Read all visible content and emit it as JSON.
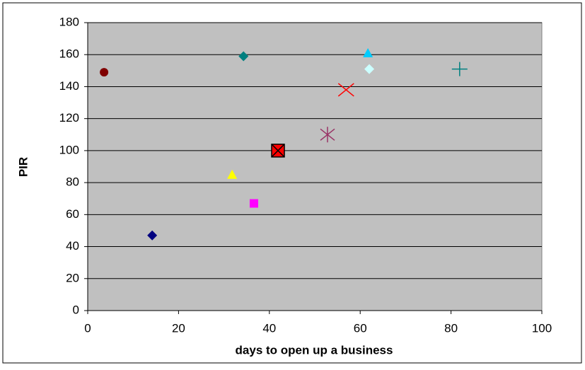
{
  "chart_data": {
    "type": "scatter",
    "x_label": "days to open up a business",
    "y_label": "PIR",
    "x": [
      3.6,
      14.2,
      34.3,
      31.8,
      36.6,
      41.9,
      52.8,
      56.9,
      61.7,
      62,
      81.9
    ],
    "values": [
      149,
      47,
      159,
      85,
      67,
      100,
      110,
      138,
      161,
      151,
      151
    ],
    "markers": [
      "circle",
      "diamond",
      "diamond",
      "triangle",
      "square",
      "square-x",
      "star",
      "x",
      "triangle",
      "diamond",
      "plus"
    ],
    "colors": [
      "#800000",
      "#000080",
      "#008080",
      "#ffff00",
      "#ff00ff",
      "#ff0000",
      "#993366",
      "#ff0000",
      "#00ccff",
      "#ccffff",
      "#008080"
    ],
    "xlim": [
      0,
      100
    ],
    "xticks": [
      0,
      20,
      40,
      60,
      80,
      100
    ],
    "ylim": [
      0,
      180
    ],
    "yticks": [
      0,
      20,
      40,
      60,
      80,
      100,
      120,
      140,
      160,
      180
    ],
    "grid": true,
    "plot_background": "#c0c0c0"
  }
}
